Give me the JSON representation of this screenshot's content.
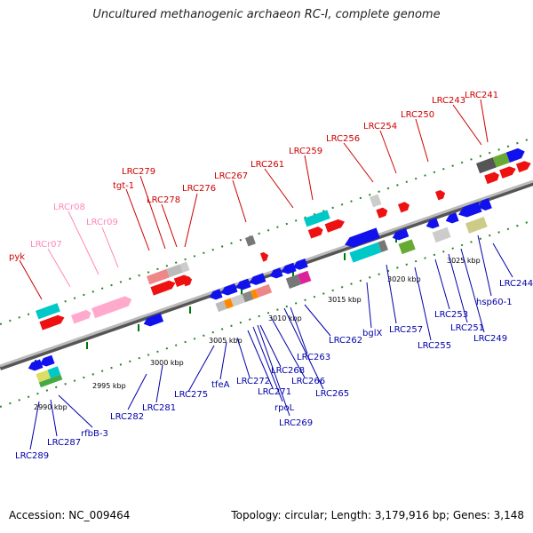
{
  "header": {
    "title": "Uncultured methanogenic archaeon RC-I, complete genome"
  },
  "footer": {
    "accession": "Accession: NC_009464",
    "topology": "Topology: circular; Length: 3,179,916 bp; Genes: 3,148"
  },
  "ticks": [
    "2990 kbp",
    "2995 kbp",
    "3000 kbp",
    "3005 kbp",
    "3010 kbp",
    "3015 kbp",
    "3020 kbp",
    "3025 kbp"
  ],
  "labels_forward_red": [
    "pyk",
    "tgt-1",
    "LRC279",
    "LRC278",
    "LRC276",
    "LRC267",
    "LRC261",
    "LRC259",
    "LRC256",
    "LRC254",
    "LRC250",
    "LRC243",
    "LRC241"
  ],
  "labels_rna_pink": [
    "LRCr07",
    "LRCr08",
    "LRCr09"
  ],
  "labels_reverse_blue": [
    "LRC289",
    "LRC287",
    "rfbB-3",
    "LRC282",
    "LRC281",
    "LRC275",
    "tfeA",
    "LRC272",
    "LRC271",
    "rpoL",
    "LRC269",
    "LRC268",
    "LRC266",
    "LRC265",
    "LRC263",
    "LRC262",
    "bglX",
    "LRC257",
    "LRC255",
    "LRC253",
    "LRC251",
    "LRC249",
    "hsp60-1",
    "LRC244"
  ],
  "colors": {
    "forward_label": "#cc0000",
    "rna_label": "#ff88bb",
    "reverse_label": "#0000aa",
    "backbone": "#999999",
    "tick": "#007700"
  }
}
